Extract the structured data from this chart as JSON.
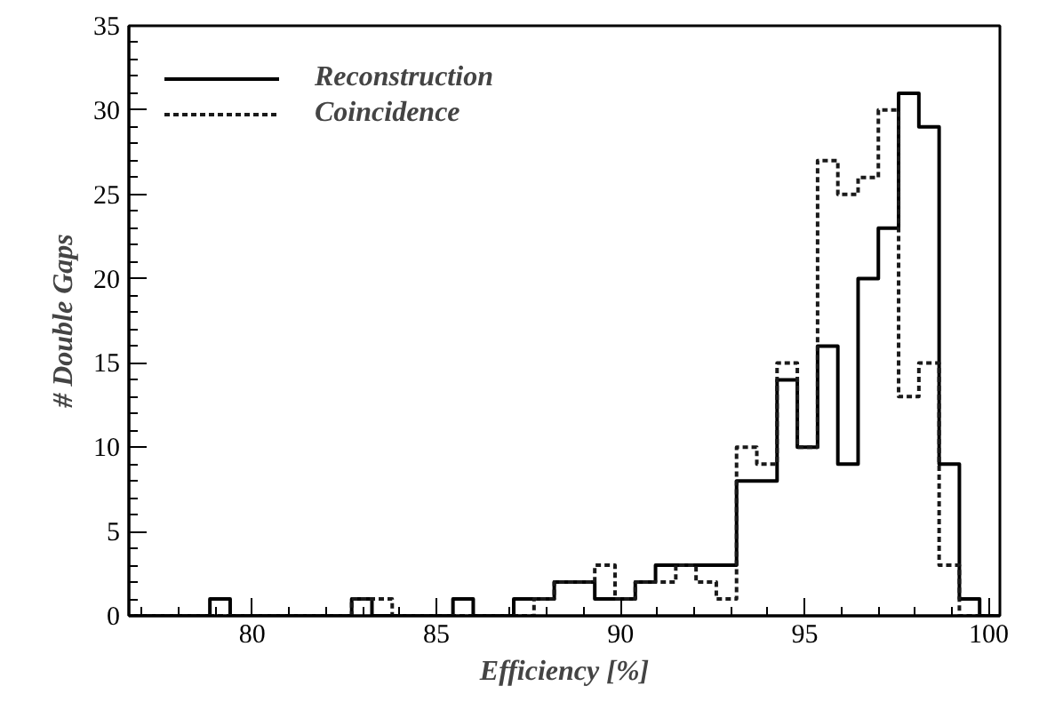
{
  "chart_data": {
    "type": "histogram",
    "xlabel": "Efficiency [%]",
    "ylabel": "# Double Gaps",
    "bins": [
      76.65,
      77.2,
      77.75,
      78.3,
      78.85,
      79.4,
      79.95,
      80.5,
      81.05,
      81.6,
      82.15,
      82.7,
      83.25,
      83.8,
      84.35,
      84.9,
      85.45,
      86.0,
      86.55,
      87.1,
      87.65,
      88.2,
      88.75,
      89.3,
      89.85,
      90.4,
      90.95,
      91.5,
      92.05,
      92.6,
      93.15,
      93.7,
      94.25,
      94.8,
      95.35,
      95.9,
      96.45,
      97.0,
      97.55,
      98.1,
      98.65,
      99.2,
      99.75,
      100.3
    ],
    "series": [
      {
        "name": "Reconstruction",
        "color": "#000000",
        "line_style": "solid",
        "values": [
          0,
          0,
          0,
          0,
          1,
          0,
          0,
          0,
          0,
          0,
          0,
          1,
          0,
          0,
          0,
          0,
          1,
          0,
          0,
          1,
          1,
          2,
          2,
          1,
          1,
          2,
          3,
          3,
          3,
          3,
          8,
          8,
          14,
          10,
          16,
          9,
          20,
          23,
          31,
          29,
          9,
          1,
          0
        ]
      },
      {
        "name": "Coincidence",
        "color": "#1a1a1a",
        "line_style": "dotted",
        "values": [
          0,
          0,
          0,
          0,
          0,
          0,
          0,
          0,
          0,
          0,
          0,
          1,
          1,
          0,
          0,
          0,
          0,
          0,
          0,
          0,
          1,
          2,
          2,
          3,
          1,
          2,
          2,
          3,
          2,
          1,
          10,
          9,
          15,
          10,
          27,
          25,
          26,
          30,
          13,
          15,
          3,
          0,
          0
        ]
      }
    ],
    "xlim": [
      76.65,
      100.3
    ],
    "ylim": [
      0,
      35
    ],
    "xticks": [
      80,
      85,
      90,
      95,
      100
    ],
    "yticks": [
      0,
      5,
      10,
      15,
      20,
      25,
      30,
      35
    ],
    "grid": false,
    "legend": "top left"
  }
}
